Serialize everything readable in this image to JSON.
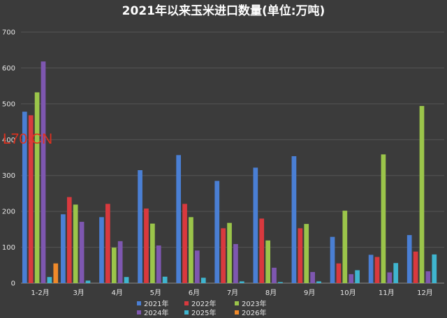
{
  "chart_data": {
    "type": "bar",
    "title": "2021年以来玉米进口数量(单位:万吨)",
    "ylim": [
      0,
      700
    ],
    "yticks": [
      0,
      100,
      200,
      300,
      400,
      500,
      600,
      700
    ],
    "grid": true,
    "legend_position": "bottom",
    "categories": [
      "1-2月",
      "3月",
      "4月",
      "5月",
      "6月",
      "7月",
      "8月",
      "9月",
      "10月",
      "11月",
      "12月"
    ],
    "series": [
      {
        "name": "2021年",
        "color": "#4a7fd4",
        "values": [
          478,
          192,
          184,
          315,
          357,
          285,
          322,
          354,
          129,
          79,
          134
        ]
      },
      {
        "name": "2022年",
        "color": "#d9393e",
        "values": [
          468,
          240,
          221,
          208,
          221,
          153,
          180,
          153,
          55,
          73,
          88
        ]
      },
      {
        "name": "2023年",
        "color": "#9bc54a",
        "values": [
          532,
          219,
          99,
          166,
          184,
          168,
          119,
          165,
          202,
          359,
          494
        ]
      },
      {
        "name": "2024年",
        "color": "#7e57b0",
        "values": [
          618,
          171,
          117,
          105,
          91,
          109,
          43,
          31,
          25,
          30,
          33
        ]
      },
      {
        "name": "2025年",
        "color": "#3fb5cf",
        "values": [
          17,
          7,
          17,
          18,
          15,
          5,
          3,
          5,
          36,
          56,
          80
        ]
      },
      {
        "name": "2026年",
        "color": "#f08a2a",
        "values": [
          55,
          null,
          null,
          null,
          null,
          null,
          null,
          null,
          null,
          null,
          null
        ]
      }
    ]
  },
  "watermark": "L70.CN"
}
